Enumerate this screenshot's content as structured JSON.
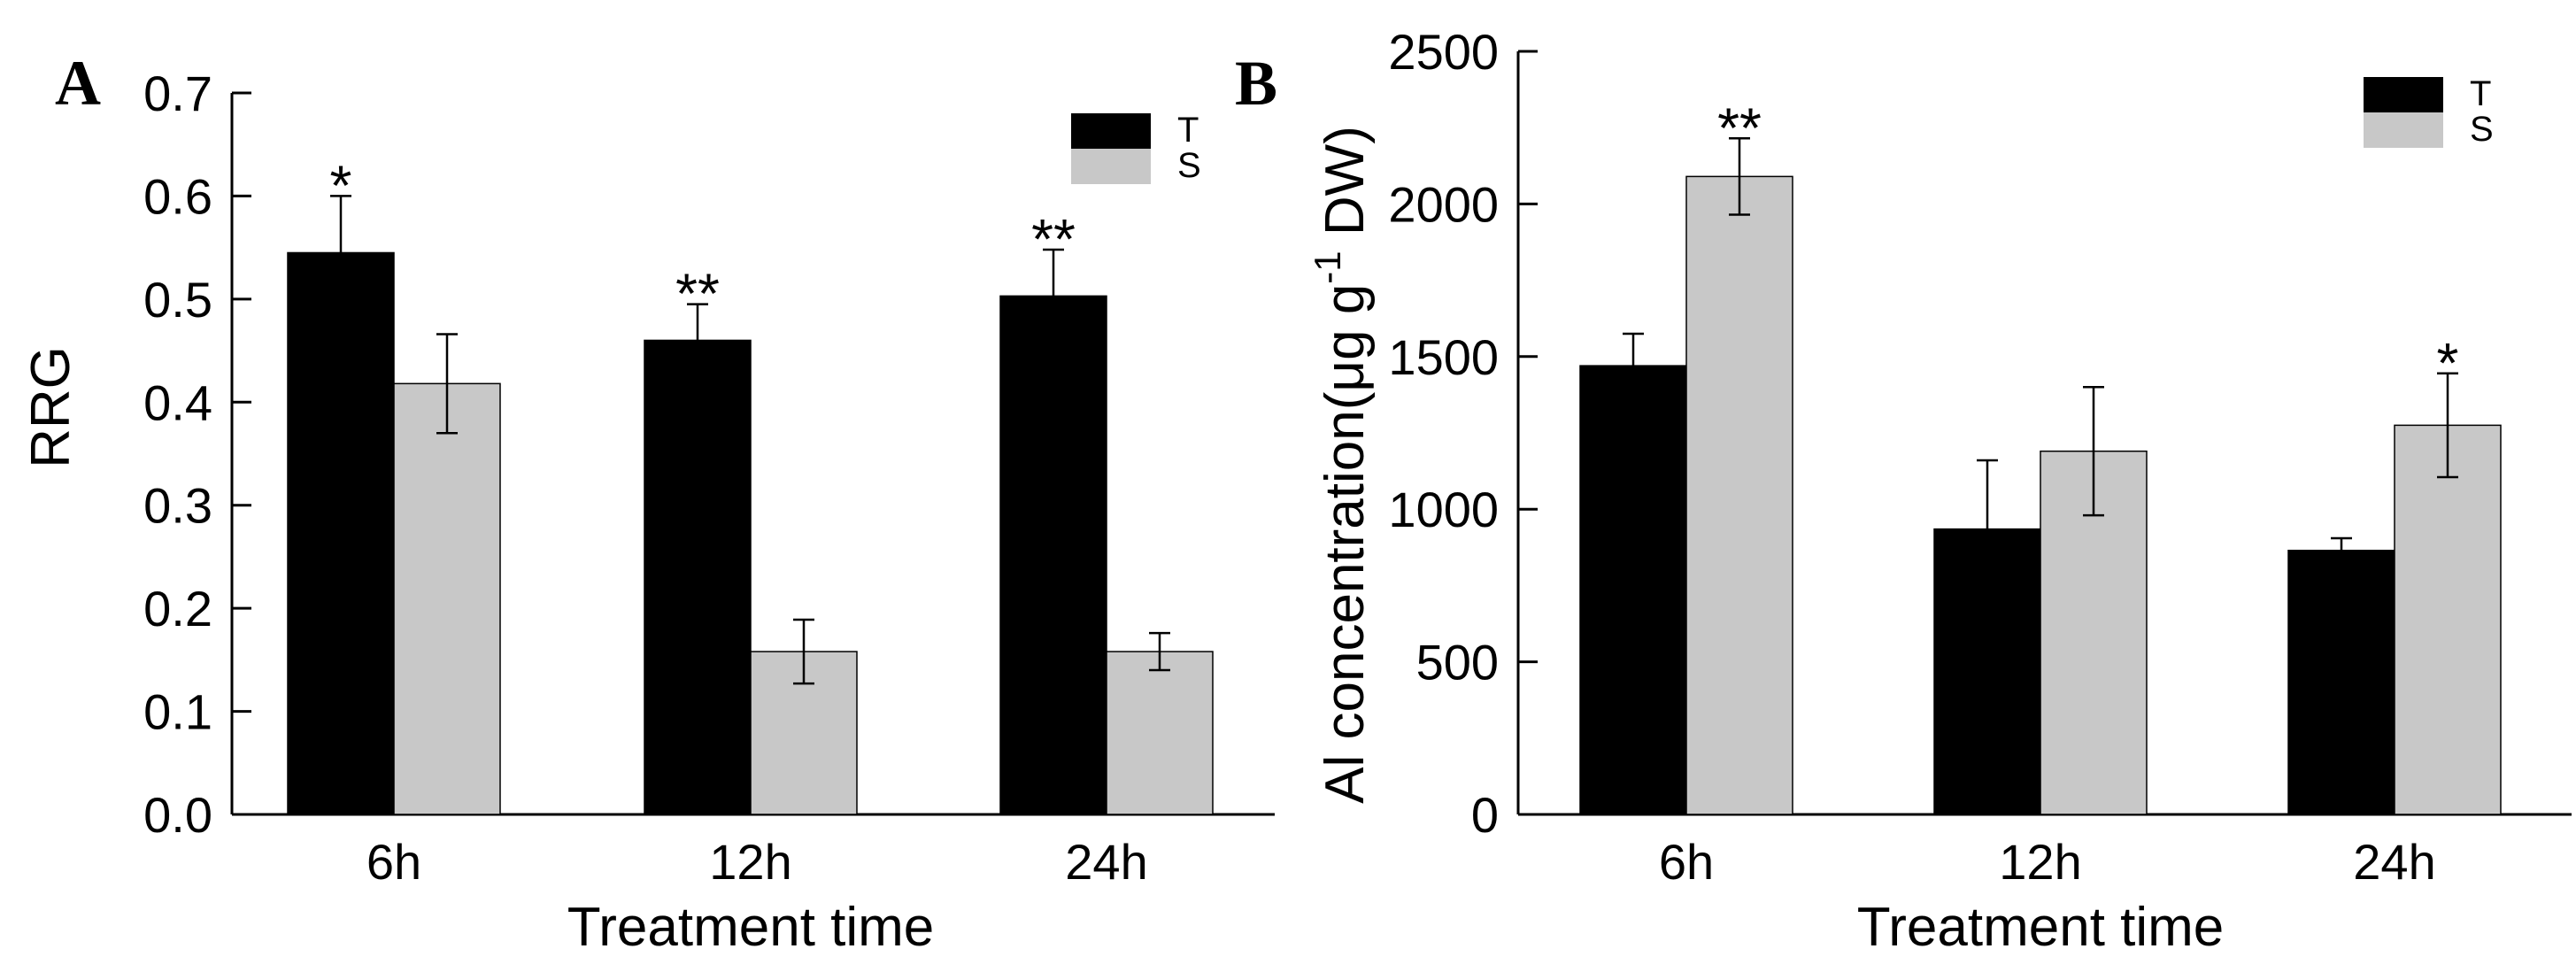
{
  "colors": {
    "T": "#000000",
    "S": "#c8c8c8",
    "axis": "#000000"
  },
  "chart_data": [
    {
      "type": "bar",
      "panel": "A",
      "title": "",
      "xlabel": "Treatment time",
      "ylabel": "RRG",
      "ylim": [
        0,
        0.7
      ],
      "yticks": [
        0.0,
        0.1,
        0.2,
        0.3,
        0.4,
        0.5,
        0.6,
        0.7
      ],
      "ytick_labels": [
        "0.0",
        "0.1",
        "0.2",
        "0.3",
        "0.4",
        "0.5",
        "0.6",
        "0.7"
      ],
      "categories": [
        "6h",
        "12h",
        "24h"
      ],
      "legend_position": "top-right",
      "series": [
        {
          "name": "T",
          "color": "#000000",
          "values": [
            0.545,
            0.46,
            0.503
          ],
          "errors": [
            0.055,
            0.035,
            0.045
          ],
          "annotations": [
            "*",
            "**",
            "**"
          ]
        },
        {
          "name": "S",
          "color": "#c8c8c8",
          "values": [
            0.418,
            0.158,
            0.158
          ],
          "errors": [
            0.048,
            0.031,
            0.018
          ],
          "annotations": [
            "",
            "",
            ""
          ]
        }
      ]
    },
    {
      "type": "bar",
      "panel": "B",
      "title": "",
      "xlabel": "Treatment time",
      "ylabel_main": "Al concentration(μg g",
      "ylabel_sup": "-1",
      "ylabel_end": " DW)",
      "ylim": [
        0,
        2500
      ],
      "yticks": [
        0,
        500,
        1000,
        1500,
        2000,
        2500
      ],
      "ytick_labels": [
        "0",
        "500",
        "1000",
        "1500",
        "2000",
        "2500"
      ],
      "categories": [
        "6h",
        "12h",
        "24h"
      ],
      "legend_position": "top-right",
      "series": [
        {
          "name": "T",
          "color": "#000000",
          "values": [
            1470,
            935,
            865
          ],
          "errors": [
            105,
            225,
            40
          ],
          "annotations": [
            "",
            "",
            ""
          ]
        },
        {
          "name": "S",
          "color": "#c8c8c8",
          "values": [
            2090,
            1190,
            1275
          ],
          "errors": [
            125,
            210,
            170
          ],
          "annotations": [
            "**",
            "",
            "*"
          ]
        }
      ]
    }
  ]
}
